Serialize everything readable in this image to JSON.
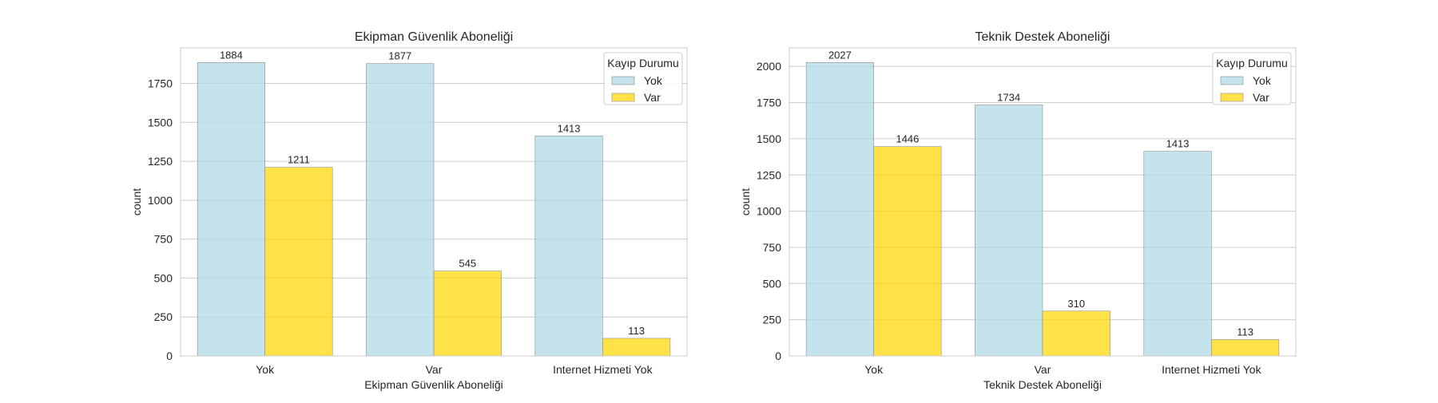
{
  "chart_data": [
    {
      "type": "bar",
      "title": "Ekipman Güvenlik Aboneliği",
      "xlabel": "Ekipman Güvenlik Aboneliği",
      "ylabel": "count",
      "categories": [
        "Yok",
        "Var",
        "Internet Hizmeti Yok"
      ],
      "series": [
        {
          "name": "Yok",
          "values": [
            1884,
            1877,
            1413
          ]
        },
        {
          "name": "Var",
          "values": [
            1211,
            545,
            113
          ]
        }
      ],
      "yticks": [
        0,
        250,
        500,
        750,
        1000,
        1250,
        1500,
        1750
      ],
      "ylim": [
        0,
        1978
      ],
      "legend": {
        "title": "Kayıp Durumu",
        "placement": "top-right"
      },
      "grid": true
    },
    {
      "type": "bar",
      "title": "Teknik Destek Aboneliği",
      "xlabel": "Teknik Destek Aboneliği",
      "ylabel": "count",
      "categories": [
        "Yok",
        "Var",
        "Internet Hizmeti Yok"
      ],
      "series": [
        {
          "name": "Yok",
          "values": [
            2027,
            1734,
            1413
          ]
        },
        {
          "name": "Var",
          "values": [
            1446,
            310,
            113
          ]
        }
      ],
      "yticks": [
        0,
        250,
        500,
        750,
        1000,
        1250,
        1500,
        1750,
        2000
      ],
      "ylim": [
        0,
        2128
      ],
      "legend": {
        "title": "Kayıp Durumu",
        "placement": "top-right"
      },
      "grid": true
    }
  ],
  "colors": {
    "series": [
      "#add8e6",
      "#ffd700"
    ],
    "grid": "#cccccc",
    "axes_edge": "#cccccc",
    "bar_edge": "#8c8c8c"
  }
}
